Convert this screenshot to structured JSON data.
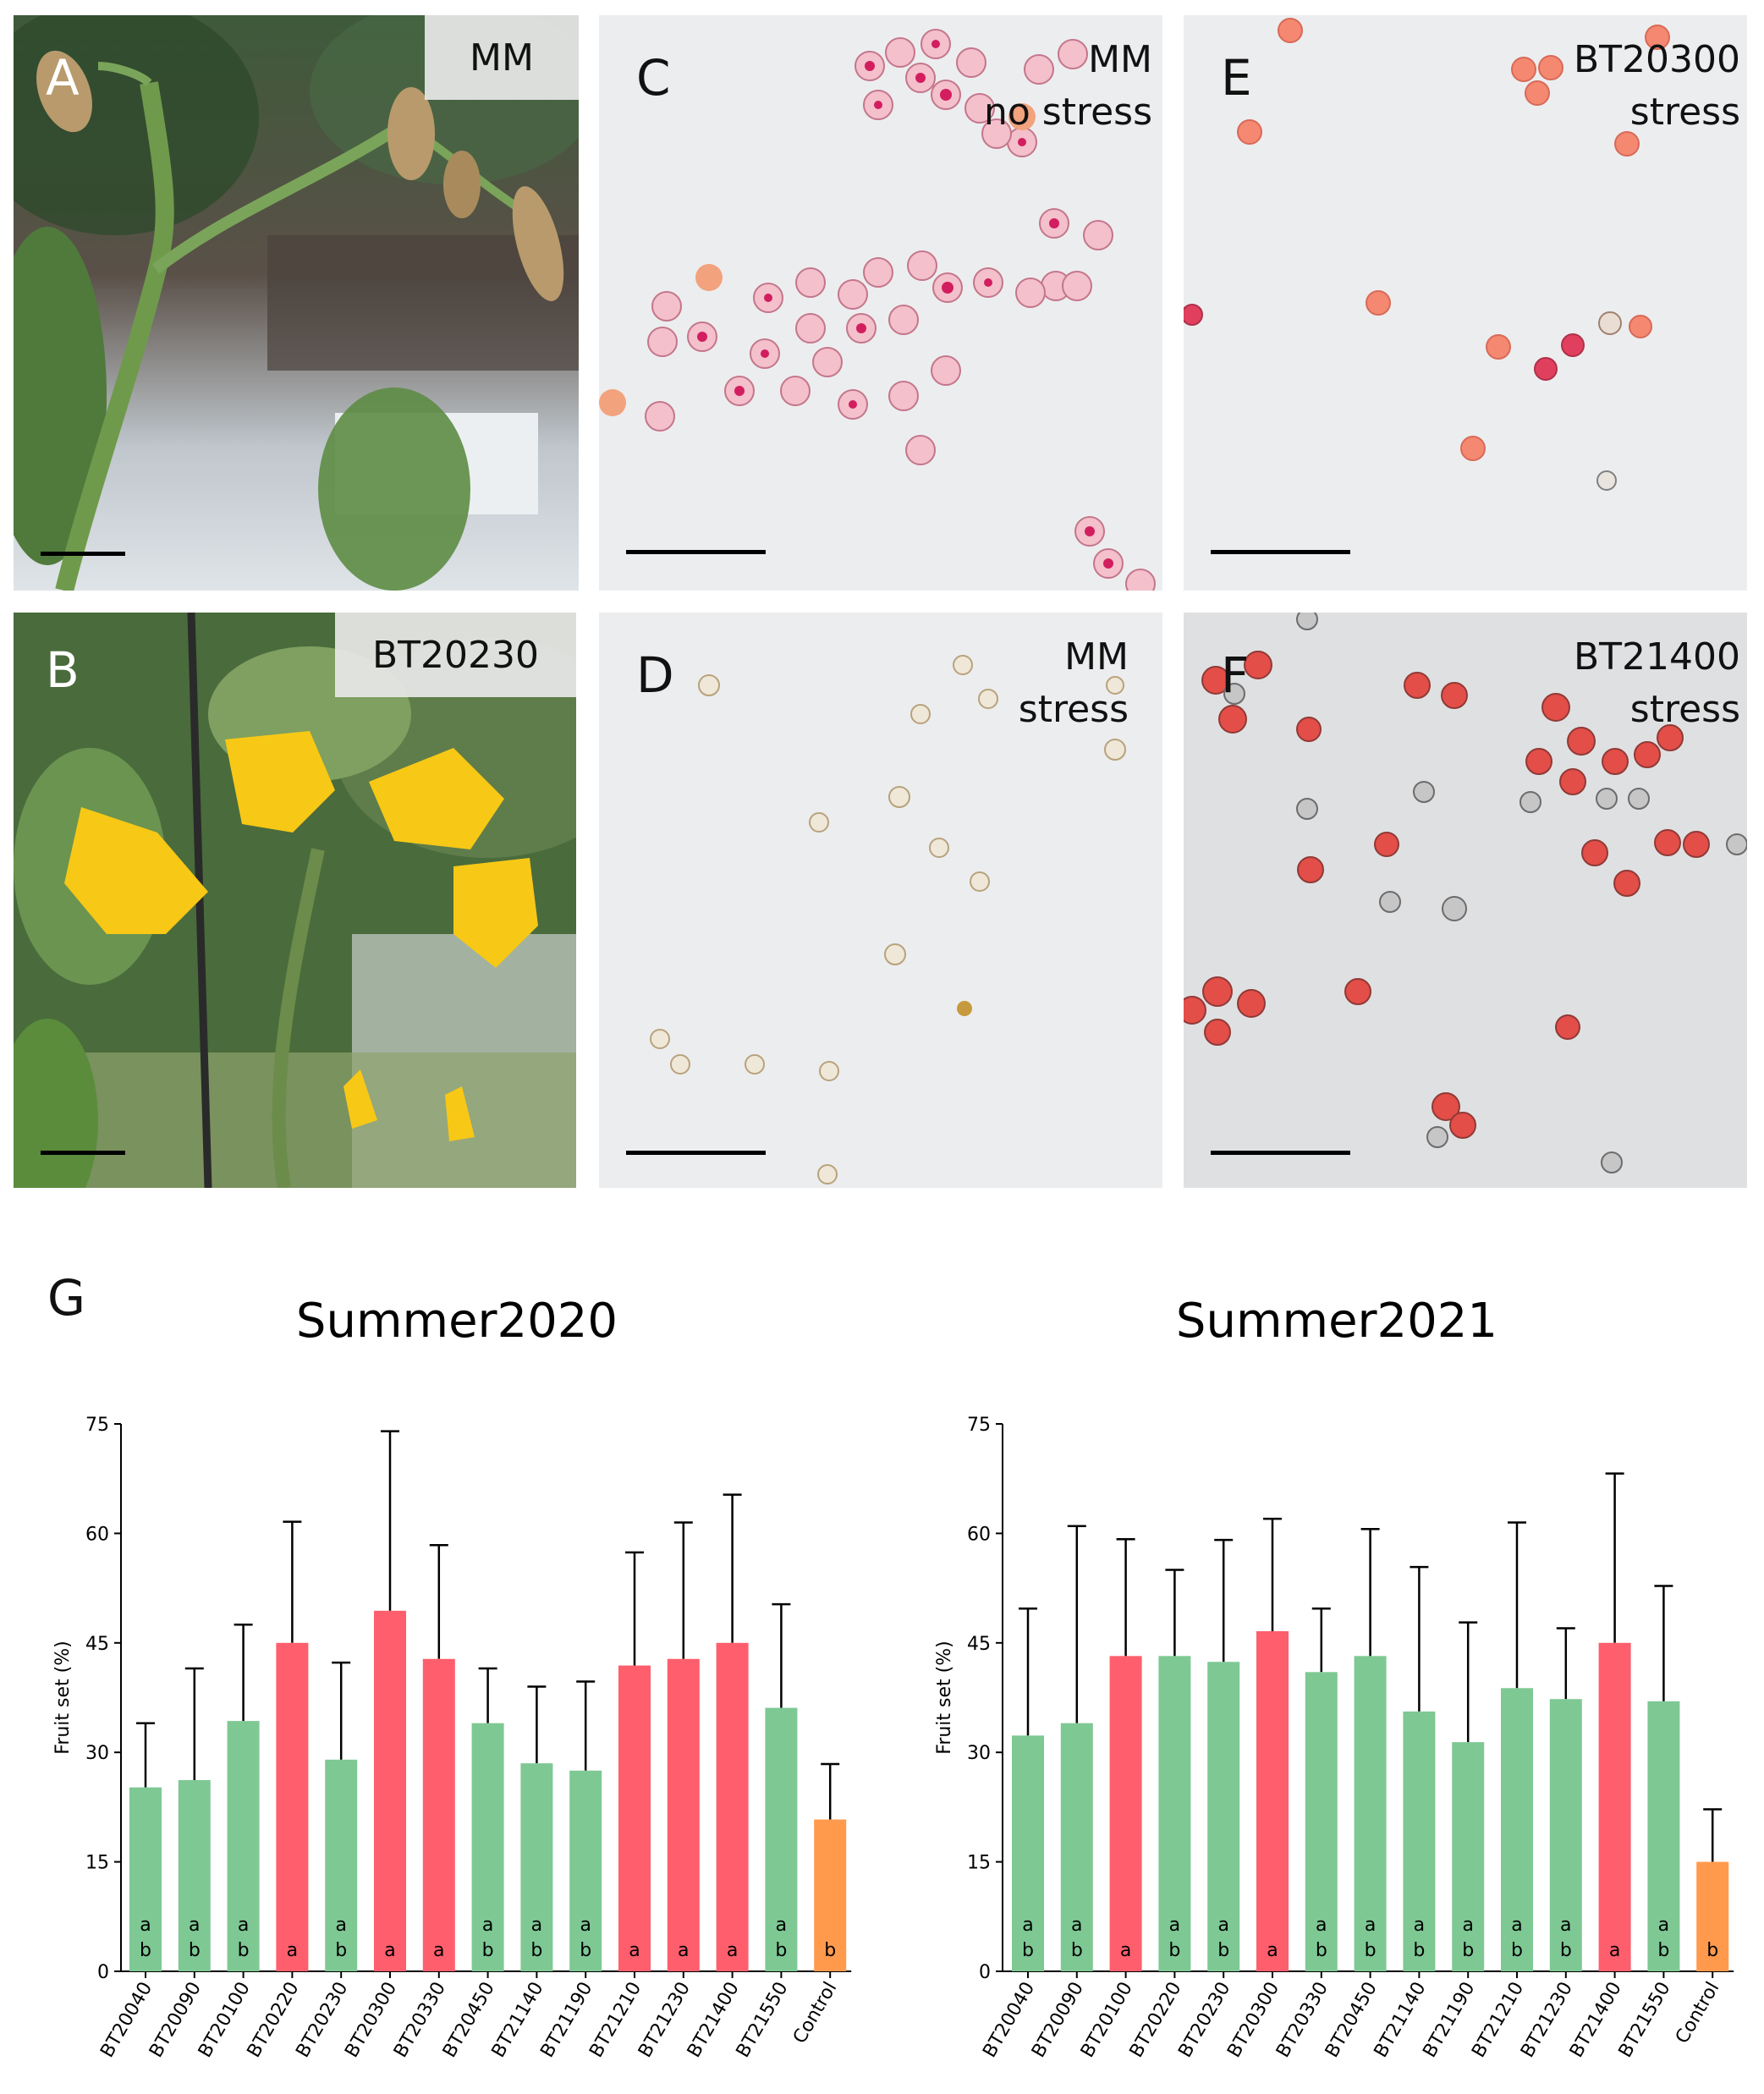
{
  "panels": {
    "A": {
      "letter": "A",
      "label": "MM"
    },
    "B": {
      "letter": "B",
      "label": "BT20230"
    },
    "C": {
      "letter": "C",
      "label_line1": "MM",
      "label_line2": "no stress"
    },
    "D": {
      "letter": "D",
      "label_line1": "MM",
      "label_line2": "stress"
    },
    "E": {
      "letter": "E",
      "label_line1": "BT20300",
      "label_line2": "stress"
    },
    "F": {
      "letter": "F",
      "label_line1": "BT21400",
      "label_line2": "stress"
    },
    "G": {
      "letter": "G"
    }
  },
  "colors": {
    "green": "#7ec894",
    "red": "#ff5e6c",
    "orange": "#ff9a4d"
  },
  "chart_data": [
    {
      "type": "bar",
      "title": "Summer2020",
      "ylabel": "Fruit set (%)",
      "ylim": [
        0,
        75
      ],
      "yticks": [
        0,
        15,
        30,
        45,
        60,
        75
      ],
      "categories": [
        "BT20040",
        "BT20090",
        "BT20100",
        "BT20220",
        "BT20230",
        "BT20300",
        "BT20330",
        "BT20450",
        "BT21140",
        "BT21190",
        "BT21210",
        "BT21230",
        "BT21400",
        "BT21550",
        "Control"
      ],
      "values": [
        25.2,
        26.2,
        34.3,
        45.0,
        29.0,
        49.4,
        42.8,
        34.0,
        28.5,
        27.5,
        41.9,
        42.8,
        45.0,
        36.1,
        20.8
      ],
      "errors_upper": [
        34.0,
        41.5,
        47.5,
        61.6,
        42.3,
        74.0,
        58.4,
        41.5,
        39.0,
        39.7,
        57.4,
        61.5,
        65.3,
        50.3,
        28.4
      ],
      "letters": [
        "a b",
        "a b",
        "a b",
        "a",
        "a b",
        "a",
        "a",
        "a b",
        "a b",
        "a b",
        "a",
        "a",
        "a",
        "a b",
        "b"
      ],
      "colors": [
        "green",
        "green",
        "green",
        "red",
        "green",
        "red",
        "red",
        "green",
        "green",
        "green",
        "red",
        "red",
        "red",
        "green",
        "orange"
      ]
    },
    {
      "type": "bar",
      "title": "Summer2021",
      "ylabel": "Fruit set (%)",
      "ylim": [
        0,
        75
      ],
      "yticks": [
        0,
        15,
        30,
        45,
        60,
        75
      ],
      "categories": [
        "BT20040",
        "BT20090",
        "BT20100",
        "BT20220",
        "BT20230",
        "BT20300",
        "BT20330",
        "BT20450",
        "BT21140",
        "BT21190",
        "BT21210",
        "BT21230",
        "BT21400",
        "BT21550",
        "Control"
      ],
      "values": [
        32.3,
        34.0,
        43.2,
        43.2,
        42.4,
        46.6,
        41.0,
        43.2,
        35.6,
        31.4,
        38.8,
        37.3,
        45.0,
        37.0,
        15.0
      ],
      "errors_upper": [
        49.7,
        61.0,
        59.2,
        55.0,
        59.1,
        62.0,
        49.7,
        60.6,
        55.4,
        47.8,
        61.5,
        47.0,
        68.2,
        52.8,
        22.2
      ],
      "letters": [
        "a b",
        "a b",
        "a",
        "a b",
        "a b",
        "a",
        "a b",
        "a b",
        "a b",
        "a b",
        "a b",
        "a b",
        "a",
        "a b",
        "b"
      ],
      "colors": [
        "green",
        "green",
        "red",
        "green",
        "green",
        "red",
        "green",
        "green",
        "green",
        "green",
        "green",
        "green",
        "red",
        "green",
        "orange"
      ]
    }
  ]
}
